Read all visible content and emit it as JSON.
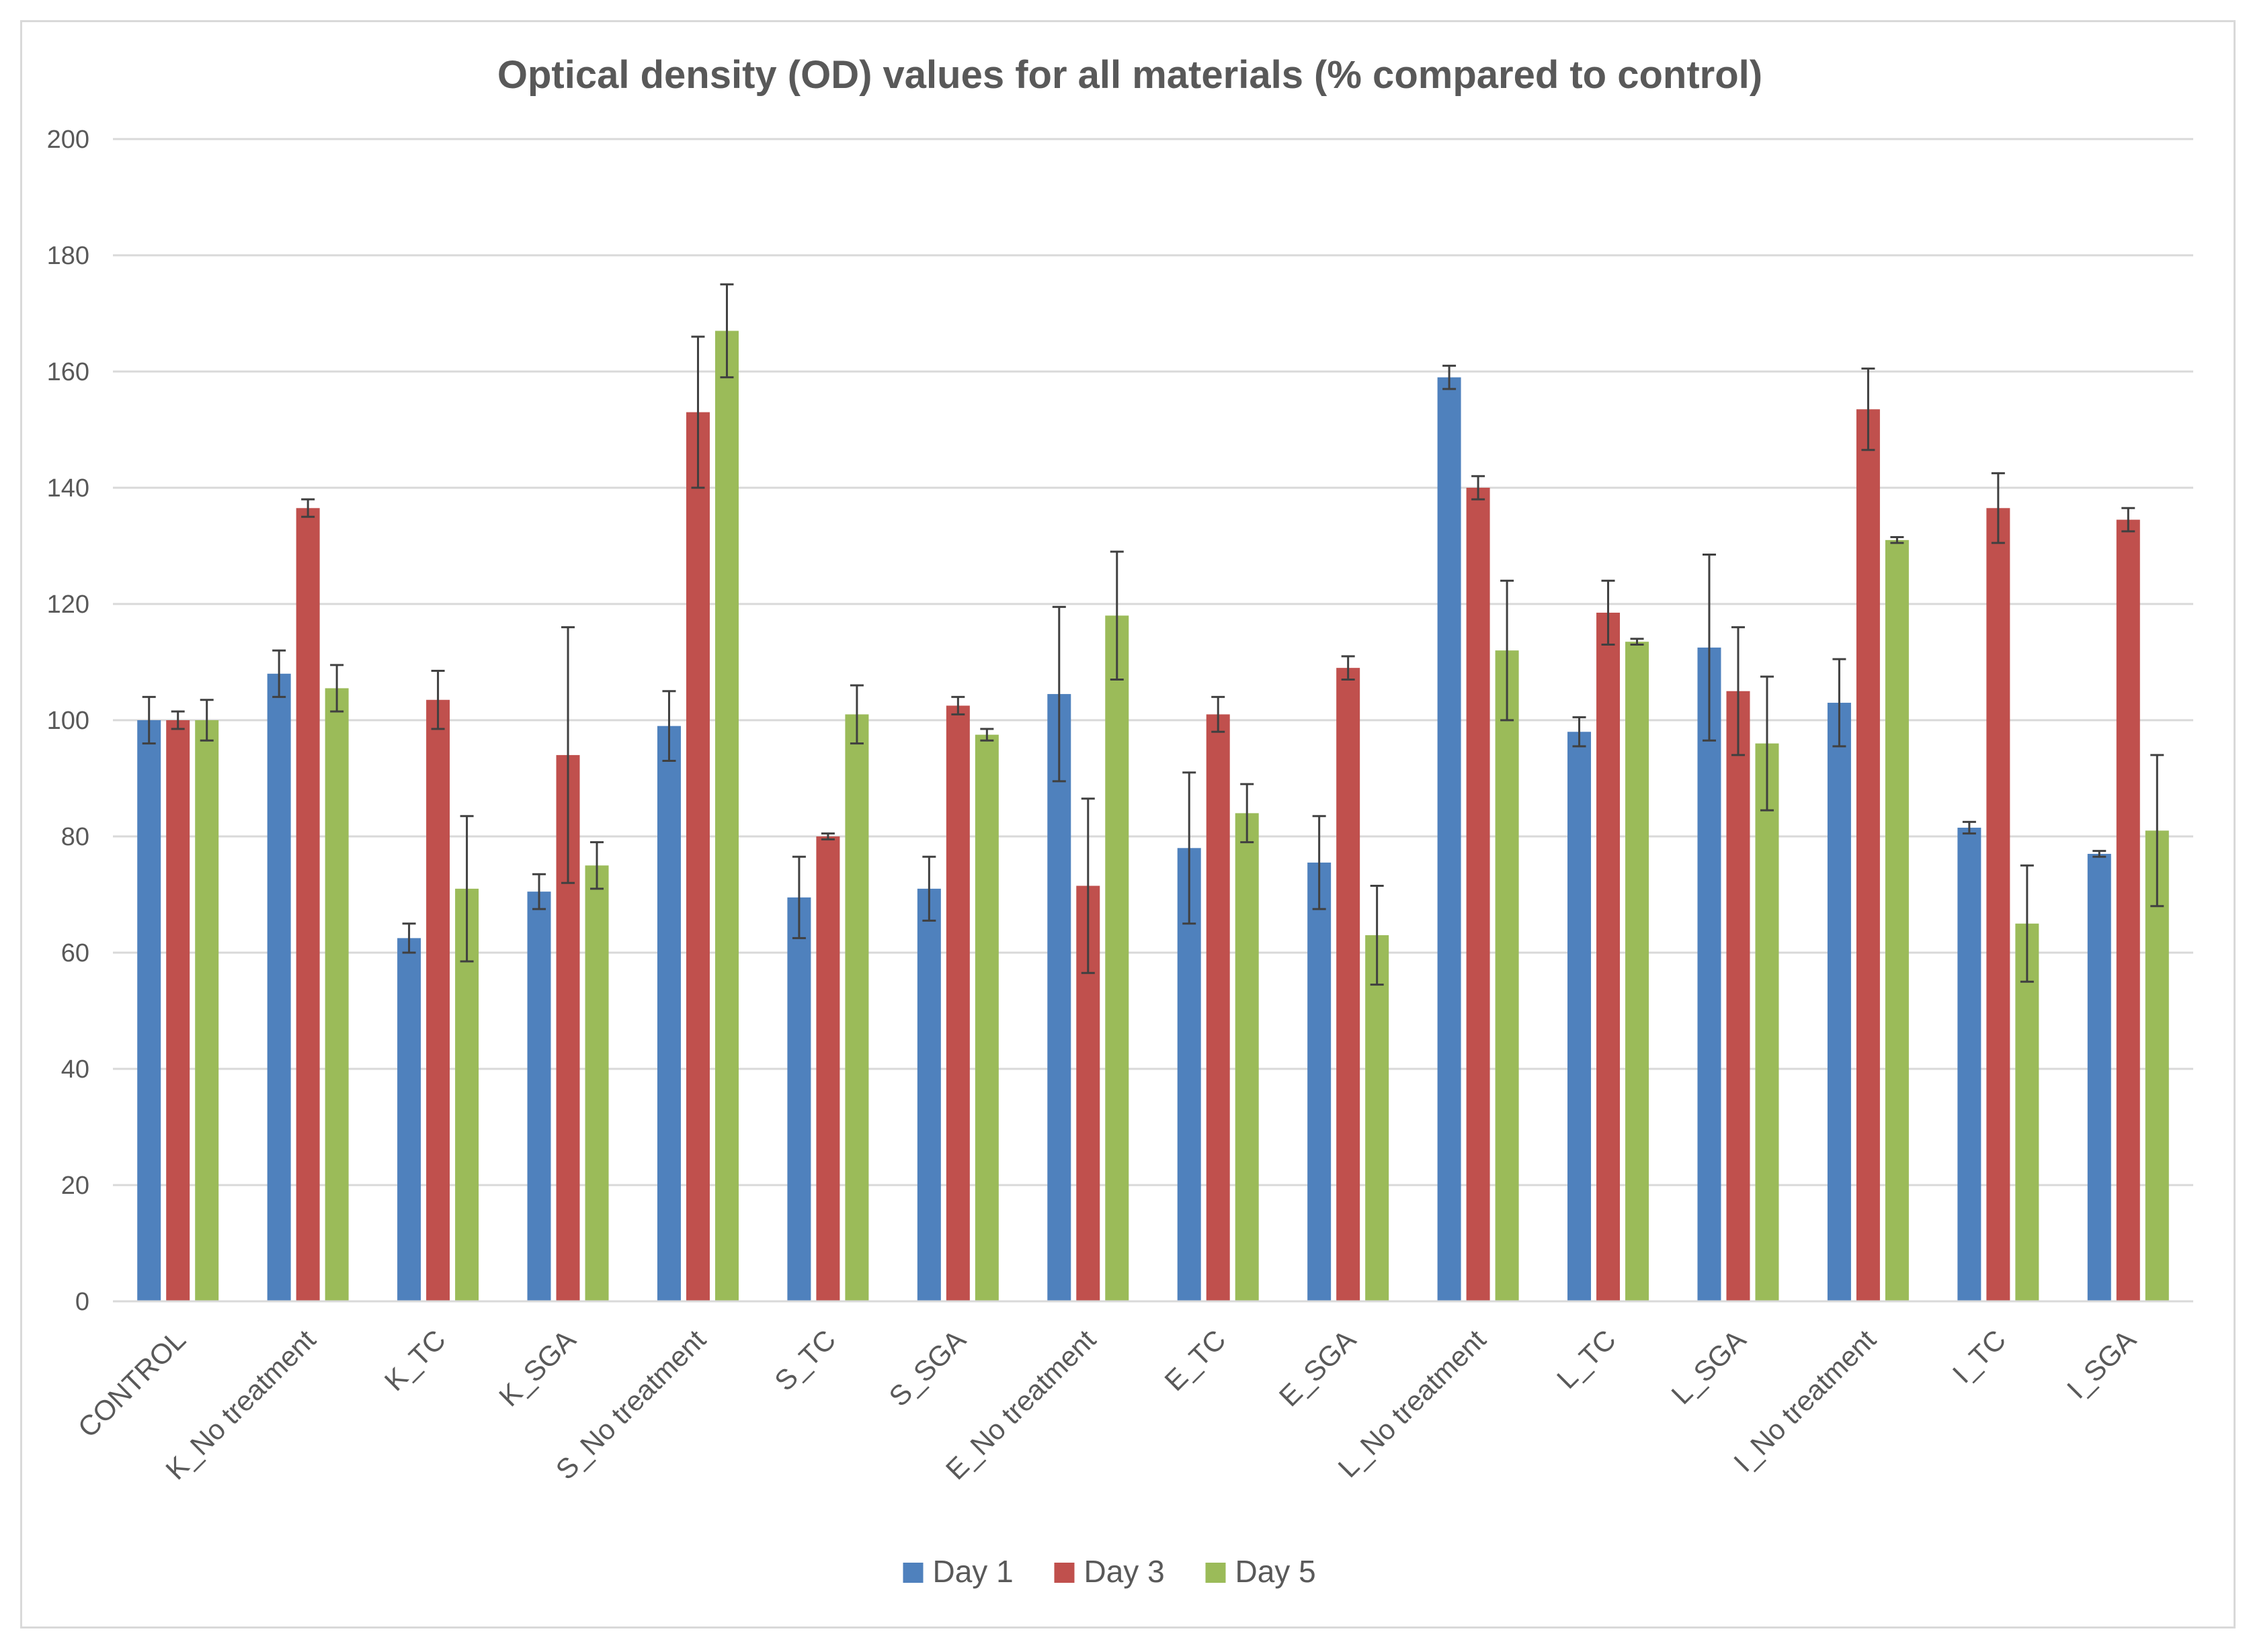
{
  "chart_data": {
    "type": "bar",
    "title": "Optical density (OD) values for all materials (% compared to control)",
    "xlabel": "",
    "ylabel": "",
    "ylim": [
      0,
      200
    ],
    "ytick_step": 20,
    "yticks": [
      "0",
      "20",
      "40",
      "60",
      "80",
      "100",
      "120",
      "140",
      "160",
      "180",
      "200"
    ],
    "grid": true,
    "legend_position": "bottom-center",
    "categories": [
      "CONTROL",
      "K_No treatment",
      "K_TC",
      "K_SGA",
      "S_No treatment",
      "S_TC",
      "S_SGA",
      "E_No treatment",
      "E_TC",
      "E_SGA",
      "L_No treatment",
      "L_TC",
      "L_SGA",
      "I_No treatment",
      "I_TC",
      "I_SGA"
    ],
    "series": [
      {
        "name": "Day 1",
        "color": "#4f81bd",
        "values": [
          100,
          108,
          62.5,
          70.5,
          99,
          69.5,
          71,
          104.5,
          78,
          75.5,
          159,
          98,
          112.5,
          103,
          81.5,
          77
        ],
        "errors": [
          4,
          4,
          2.5,
          3,
          6,
          7,
          5.5,
          15,
          13,
          8,
          2,
          2.5,
          16,
          7.5,
          1,
          0.5
        ]
      },
      {
        "name": "Day 3",
        "color": "#c0504d",
        "values": [
          100,
          136.5,
          103.5,
          94,
          153,
          80,
          102.5,
          71.5,
          101,
          109,
          140,
          118.5,
          105,
          153.5,
          136.5,
          134.5
        ],
        "errors": [
          1.5,
          1.5,
          5,
          22,
          13,
          0.5,
          1.5,
          15,
          3,
          2,
          2,
          5.5,
          11,
          7,
          6,
          2
        ]
      },
      {
        "name": "Day 5",
        "color": "#9bbb59",
        "values": [
          100,
          105.5,
          71,
          75,
          167,
          101,
          97.5,
          118,
          84,
          63,
          112,
          113.5,
          96,
          131,
          65,
          81
        ],
        "errors": [
          3.5,
          4,
          12.5,
          4,
          8,
          5,
          1,
          11,
          5,
          8.5,
          12,
          0.5,
          11.5,
          0.5,
          10,
          13
        ]
      }
    ]
  }
}
